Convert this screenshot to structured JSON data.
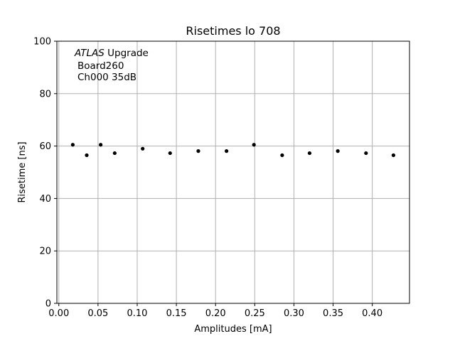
{
  "chart_data": {
    "type": "scatter",
    "title": "Risetimes lo 708",
    "xlabel": "Amplitudes [mA]",
    "ylabel": "Risetime [ns]",
    "xlim": [
      -0.0025,
      0.4475
    ],
    "ylim": [
      0,
      100
    ],
    "x_ticks": [
      0.0,
      0.05,
      0.1,
      0.15,
      0.2,
      0.25,
      0.3,
      0.35,
      0.4
    ],
    "x_tick_labels": [
      "0.00",
      "0.05",
      "0.10",
      "0.15",
      "0.20",
      "0.25",
      "0.30",
      "0.35",
      "0.40"
    ],
    "y_ticks": [
      0,
      20,
      40,
      60,
      80,
      100
    ],
    "y_tick_labels": [
      "0",
      "20",
      "40",
      "60",
      "80",
      "100"
    ],
    "grid": true,
    "legend": "none",
    "annotation": {
      "line1_italic": "ATLAS",
      "line1_rest": " Upgrade",
      "line2": "Board260",
      "line3": "Ch000 35dB"
    },
    "marker_color": "#000000",
    "grid_color": "#b0b0b0",
    "x": [
      0.0178,
      0.0356,
      0.0534,
      0.0713,
      0.107,
      0.142,
      0.178,
      0.214,
      0.249,
      0.285,
      0.32,
      0.356,
      0.392,
      0.427
    ],
    "y": [
      60.5,
      56.5,
      60.5,
      57.3,
      59.0,
      57.3,
      58.1,
      58.1,
      60.5,
      56.5,
      57.3,
      58.1,
      57.3,
      56.5
    ]
  }
}
